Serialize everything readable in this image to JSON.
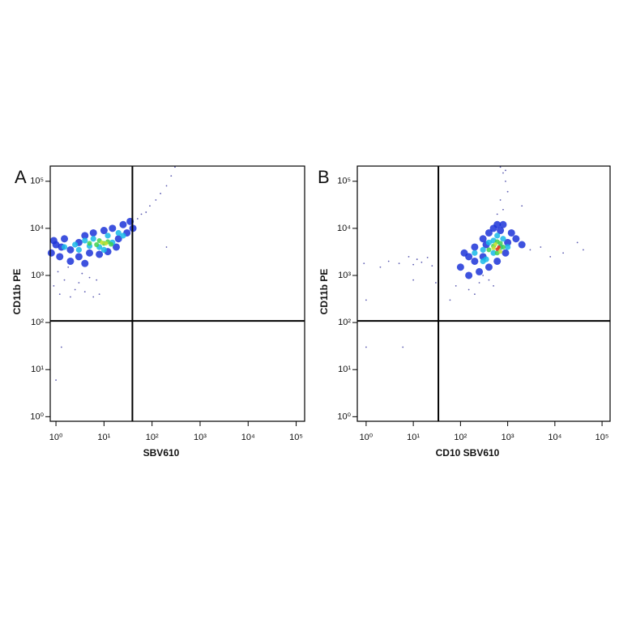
{
  "chart_data": [
    {
      "type": "scatter",
      "panel_label": "A",
      "x_label": "SBV610",
      "y_label": "CD11b PE",
      "log_x": true,
      "log_y": true,
      "xlim": [
        0.76,
        150000
      ],
      "ylim": [
        0.8,
        210000
      ],
      "xticks": [
        {
          "value": 1,
          "label": "10⁰"
        },
        {
          "value": 10,
          "label": "10¹"
        },
        {
          "value": 100,
          "label": "10²"
        },
        {
          "value": 1000,
          "label": "10³"
        },
        {
          "value": 10000,
          "label": "10⁴"
        },
        {
          "value": 100000,
          "label": "10⁵"
        }
      ],
      "yticks": [
        {
          "value": 1,
          "label": "10⁰"
        },
        {
          "value": 10,
          "label": "10¹"
        },
        {
          "value": 100,
          "label": "10²"
        },
        {
          "value": 1000,
          "label": "10³"
        },
        {
          "value": 10000,
          "label": "10⁴"
        },
        {
          "value": 100000,
          "label": "10⁵"
        }
      ],
      "quadrant_x": 39,
      "quadrant_y": 108,
      "series": [
        {
          "color": "#5a5ab0",
          "x": [
            0.9,
            1.2,
            1.5,
            2,
            2.5,
            3,
            4,
            5,
            6,
            1.1,
            1.8,
            3.5,
            7,
            8,
            50,
            60,
            75,
            90,
            120,
            150,
            200,
            250,
            300,
            200,
            1.0,
            1.3
          ],
          "values": [
            600,
            400,
            800,
            350,
            500,
            700,
            450,
            900,
            350,
            1200,
            1500,
            1100,
            800,
            400,
            16000,
            20000,
            22000,
            30000,
            40000,
            55000,
            80000,
            130000,
            200000,
            4000,
            6,
            30
          ]
        },
        {
          "color": "#1c34d8",
          "x": [
            0.8,
            1,
            1.2,
            1.5,
            2,
            2,
            3,
            3,
            4,
            5,
            6,
            8,
            10,
            12,
            15,
            20,
            25,
            30,
            35,
            40,
            0.9,
            1.3,
            4,
            18
          ],
          "values": [
            3000,
            4500,
            2500,
            6000,
            3500,
            2000,
            5000,
            2500,
            7000,
            3000,
            8000,
            2800,
            9000,
            3200,
            10000,
            6000,
            12000,
            8000,
            14000,
            10000,
            5500,
            4000,
            1800,
            4000
          ]
        },
        {
          "color": "#18b8e8",
          "x": [
            1.5,
            2.5,
            3,
            4,
            5,
            6,
            8,
            12,
            15,
            20,
            25,
            10
          ],
          "values": [
            4000,
            4500,
            3500,
            5500,
            4200,
            6000,
            4000,
            7000,
            5000,
            8000,
            7000,
            3500
          ]
        },
        {
          "color": "#40d050",
          "x": [
            5,
            7,
            8,
            10,
            12,
            14
          ],
          "values": [
            4800,
            4500,
            5500,
            4800,
            5200,
            4600
          ]
        },
        {
          "color": "#c8e030",
          "x": [
            9,
            11
          ],
          "values": [
            5000,
            4800
          ]
        }
      ]
    },
    {
      "type": "scatter",
      "panel_label": "B",
      "x_label": "CD10 SBV610",
      "y_label": "CD11b PE",
      "log_x": true,
      "log_y": true,
      "xlim": [
        0.65,
        148000
      ],
      "ylim": [
        0.8,
        210000
      ],
      "xticks": [
        {
          "value": 1,
          "label": "10⁰"
        },
        {
          "value": 10,
          "label": "10¹"
        },
        {
          "value": 100,
          "label": "10²"
        },
        {
          "value": 1000,
          "label": "10³"
        },
        {
          "value": 10000,
          "label": "10⁴"
        },
        {
          "value": 100000,
          "label": "10⁵"
        }
      ],
      "yticks": [
        {
          "value": 1,
          "label": "10⁰"
        },
        {
          "value": 10,
          "label": "10¹"
        },
        {
          "value": 100,
          "label": "10²"
        },
        {
          "value": 1000,
          "label": "10³"
        },
        {
          "value": 10000,
          "label": "10⁴"
        },
        {
          "value": 100000,
          "label": "10⁵"
        }
      ],
      "quadrant_x": 34,
      "quadrant_y": 108,
      "series": [
        {
          "color": "#5a5ab0",
          "x": [
            2,
            3,
            5,
            8,
            10,
            12,
            15,
            20,
            25,
            0.9,
            1,
            6,
            10,
            30,
            60,
            80,
            150,
            200,
            250,
            300,
            400,
            500,
            700,
            800,
            900,
            1000,
            2000,
            3000,
            5000,
            8000,
            15000,
            30000,
            40000,
            600,
            700,
            800,
            900,
            1
          ],
          "values": [
            1500,
            2000,
            1800,
            2500,
            1700,
            2200,
            1900,
            2400,
            1600,
            1800,
            300,
            30,
            800,
            700,
            300,
            600,
            500,
            400,
            700,
            1000,
            800,
            600,
            200000,
            150000,
            100000,
            60000,
            30000,
            3500,
            4000,
            2500,
            3000,
            5000,
            3500,
            20000,
            40000,
            25000,
            170000,
            30
          ]
        },
        {
          "color": "#1c34d8",
          "x": [
            100,
            120,
            150,
            200,
            200,
            250,
            300,
            300,
            400,
            400,
            500,
            600,
            700,
            800,
            1000,
            1200,
            1500,
            2000,
            150,
            350,
            900,
            600
          ],
          "values": [
            1500,
            3000,
            1000,
            4000,
            2000,
            1200,
            6000,
            2500,
            8000,
            1500,
            10000,
            2000,
            9000,
            12000,
            5000,
            8000,
            6000,
            4500,
            2500,
            4500,
            3000,
            12000
          ]
        },
        {
          "color": "#18b8e8",
          "x": [
            200,
            300,
            350,
            400,
            500,
            600,
            700,
            800,
            1000,
            500,
            300
          ],
          "values": [
            3000,
            3500,
            2200,
            5000,
            3000,
            7000,
            4000,
            6000,
            4000,
            5500,
            2000
          ]
        },
        {
          "color": "#40d050",
          "x": [
            400,
            500,
            600,
            700,
            800,
            600
          ],
          "values": [
            3500,
            4200,
            3000,
            4800,
            4000,
            5200
          ]
        },
        {
          "color": "#c8e030",
          "x": [
            500,
            650,
            700,
            550
          ],
          "values": [
            3800,
            3800,
            3200,
            4600
          ]
        },
        {
          "color": "#e03020",
          "x": [
            600,
            650
          ],
          "values": [
            3600,
            4000
          ]
        }
      ]
    }
  ]
}
